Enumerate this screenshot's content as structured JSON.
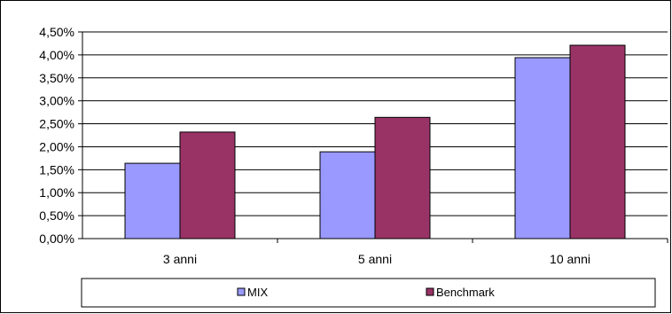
{
  "chart_data": {
    "type": "bar",
    "categories": [
      "3 anni",
      "5 anni",
      "10 anni"
    ],
    "series": [
      {
        "name": "MIX",
        "values": [
          1.64,
          1.89,
          3.94
        ],
        "color": "#9999ff"
      },
      {
        "name": "Benchmark",
        "values": [
          2.32,
          2.64,
          4.21
        ],
        "color": "#993366"
      }
    ],
    "y_ticks": [
      "0,00%",
      "0,50%",
      "1,00%",
      "1,50%",
      "2,00%",
      "2,50%",
      "3,00%",
      "3,50%",
      "4,00%",
      "4,50%"
    ],
    "ylim": [
      0,
      4.5
    ],
    "y_unit": "%",
    "grid": true,
    "legend_position": "bottom"
  }
}
